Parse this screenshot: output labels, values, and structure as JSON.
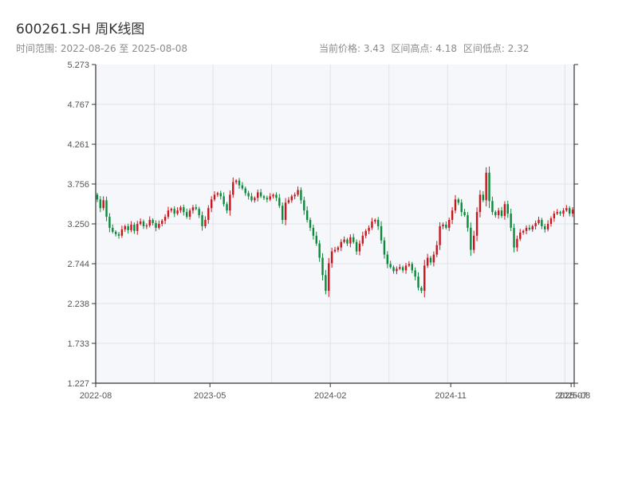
{
  "header": {
    "title": "600261.SH 周K线图",
    "subtitle": "时间范围: 2022-08-26 至 2025-08-08",
    "current_price": "当前价格: 3.43",
    "range_high": "区间高点: 4.18",
    "range_low": "区间低点: 2.32"
  },
  "colors": {
    "up": "#c8161d",
    "down": "#0a8a3a",
    "plot_bg": "#f5f7fa",
    "grid": "#e0e3e8",
    "axis": "#333333"
  },
  "chart_data": {
    "type": "candlestick",
    "title": "600261.SH 周K线图",
    "x_ticks": [
      "2022-08",
      "2023-05",
      "2024-02",
      "2024-11",
      "2025-07",
      "2025-08"
    ],
    "y_ticks": [
      "5.273",
      "4.767",
      "4.261",
      "3.756",
      "3.250",
      "2.744",
      "2.238",
      "1.733",
      "1.227"
    ],
    "ylim": [
      1.227,
      5.273
    ],
    "grid": true,
    "period": "weekly",
    "n_weeks": 155,
    "series_summary": {
      "current_price": 3.43,
      "range_high": 4.18,
      "range_low": 2.32
    },
    "close": [
      3.56,
      3.45,
      3.55,
      3.34,
      3.2,
      3.15,
      3.12,
      3.1,
      3.18,
      3.22,
      3.17,
      3.24,
      3.16,
      3.25,
      3.28,
      3.22,
      3.23,
      3.3,
      3.26,
      3.2,
      3.25,
      3.29,
      3.34,
      3.42,
      3.44,
      3.38,
      3.42,
      3.46,
      3.4,
      3.34,
      3.42,
      3.46,
      3.44,
      3.36,
      3.22,
      3.3,
      3.45,
      3.56,
      3.62,
      3.64,
      3.6,
      3.5,
      3.42,
      3.62,
      3.78,
      3.8,
      3.74,
      3.7,
      3.64,
      3.6,
      3.55,
      3.58,
      3.65,
      3.6,
      3.58,
      3.56,
      3.6,
      3.62,
      3.58,
      3.48,
      3.3,
      3.52,
      3.55,
      3.6,
      3.62,
      3.68,
      3.55,
      3.42,
      3.3,
      3.2,
      3.1,
      3.0,
      2.82,
      2.6,
      2.4,
      2.75,
      2.9,
      2.92,
      2.95,
      3.02,
      3.05,
      3.0,
      3.08,
      3.02,
      2.9,
      3.0,
      3.1,
      3.16,
      3.2,
      3.28,
      3.3,
      3.22,
      3.04,
      2.86,
      2.74,
      2.7,
      2.65,
      2.68,
      2.7,
      2.66,
      2.72,
      2.74,
      2.66,
      2.58,
      2.44,
      2.4,
      2.72,
      2.82,
      2.76,
      2.86,
      2.98,
      3.22,
      3.24,
      3.2,
      3.3,
      3.42,
      3.56,
      3.52,
      3.4,
      3.36,
      3.2,
      2.92,
      3.1,
      3.4,
      3.62,
      3.55,
      3.9,
      3.54,
      3.4,
      3.36,
      3.42,
      3.35,
      3.5,
      3.38,
      3.2,
      2.95,
      3.06,
      3.14,
      3.16,
      3.2,
      3.18,
      3.22,
      3.26,
      3.3,
      3.22,
      3.18,
      3.25,
      3.32,
      3.38,
      3.4,
      3.38,
      3.42,
      3.45,
      3.38,
      3.43
    ]
  }
}
